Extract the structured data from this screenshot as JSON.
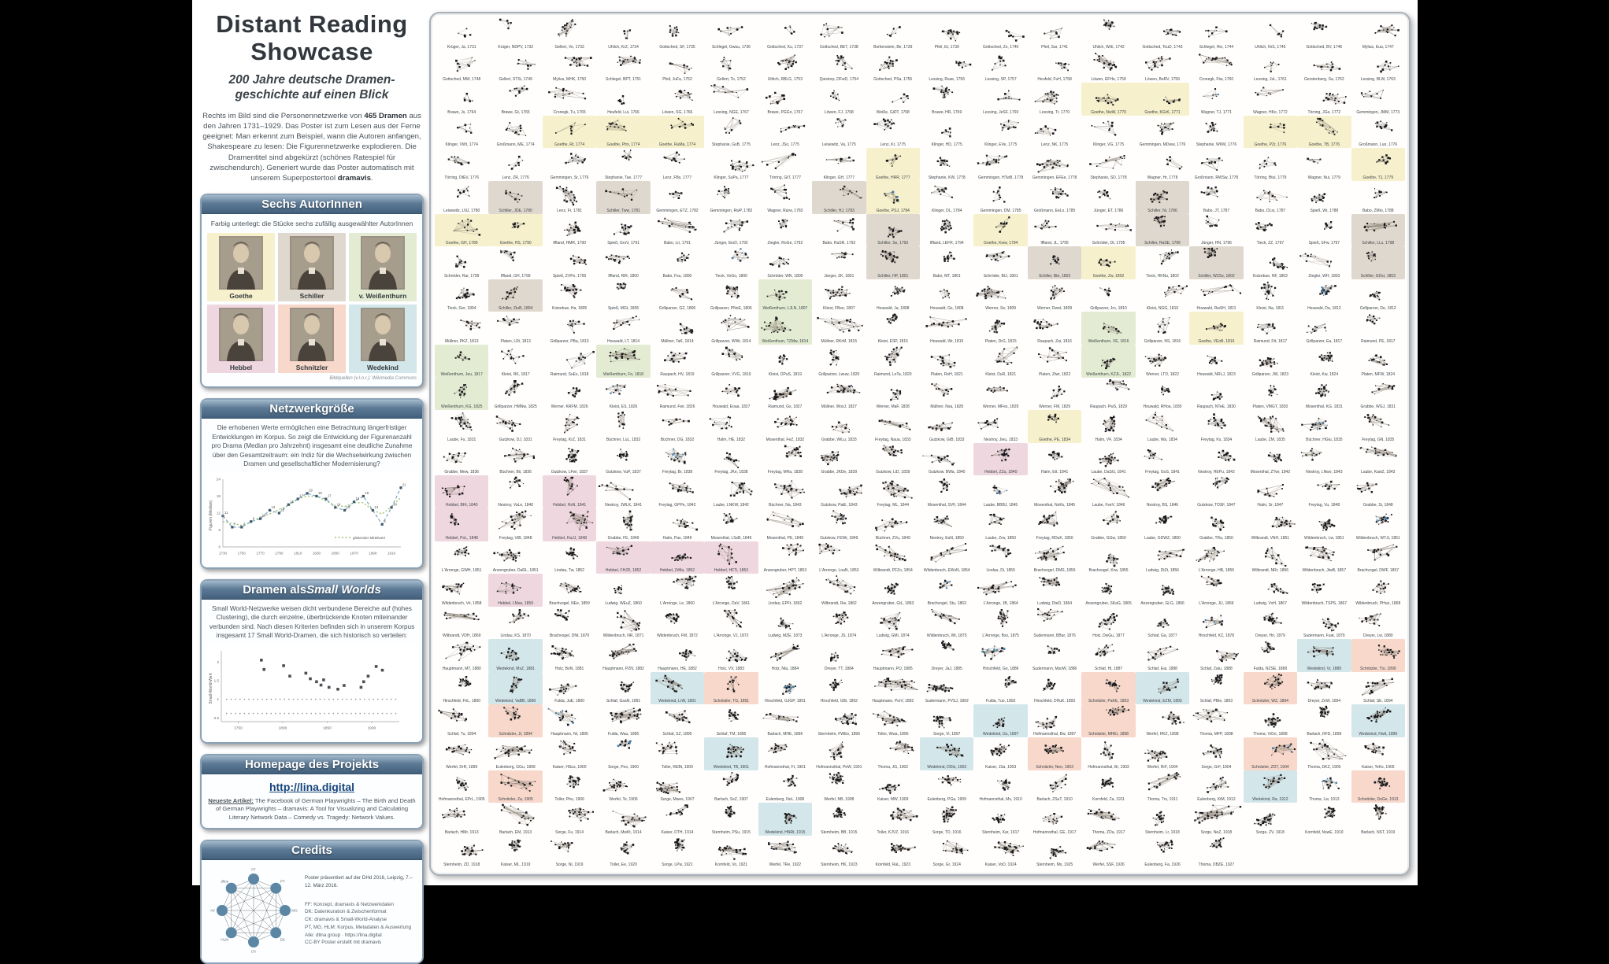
{
  "title": "Distant Reading Showcase",
  "subtitle": "200 Jahre deutsche Dramen-geschichte auf einen Blick",
  "intro": {
    "p1": "Rechts im Bild sind die Personennetzwerke von ",
    "b1": "465 Dramen",
    "p2": " aus den Jahren 1731–1929. Das Poster ist zum Lesen aus der Ferne geeignet: Man erkennt zum Beispiel, wann die Autoren anfangen, Shakespeare zu lesen: Die Figurennetzwerke explodieren. Die Dramentitel sind abgekürzt (schönes Ratespiel für zwischendurch). Generiert wurde das Poster automatisch mit unserem Superpostertool ",
    "b2": "dramavis",
    "p3": "."
  },
  "authors_box": {
    "header": "Sechs AutorInnen",
    "note": "Farbig unterlegt: die Stücke sechs zufällig ausgewählter AutorInnen",
    "caption": "Bildquellen (v.l.n.r.): Wikimedia Commons",
    "items": [
      {
        "name": "Goethe",
        "key": "goethe",
        "color": "#f6f1cc"
      },
      {
        "name": "Schiller",
        "key": "schiller",
        "color": "#dfd8ce"
      },
      {
        "name": "v. Weißenthurn",
        "key": "weissenthurn",
        "color": "#e3ecd2"
      },
      {
        "name": "Hebbel",
        "key": "hebbel",
        "color": "#efd7e0"
      },
      {
        "name": "Schnitzler",
        "key": "schnitzler",
        "color": "#f7d8cb"
      },
      {
        "name": "Wedekind",
        "key": "wedekind",
        "color": "#d3e6ea"
      }
    ]
  },
  "network_size_box": {
    "header": "Netzwerkgröße",
    "text": "Die erhobenen Werte ermöglichen eine Betrachtung längerfristiger Entwicklungen im Korpus. So zeigt die Entwicklung der Figurenanzahl pro Drama (Median pro Jahrzehnt) insgesamt eine deutliche Zunahme über den Gesamtzeitraum: ein Indiz für die Wechselwirkung zwischen Dramen und gesellschaftlicher Modernisierung?",
    "chart_data": {
      "type": "line",
      "x": [
        1730,
        1740,
        1750,
        1760,
        1770,
        1780,
        1790,
        1800,
        1810,
        1820,
        1830,
        1840,
        1850,
        1860,
        1870,
        1880,
        1890,
        1900,
        1910,
        1920
      ],
      "series": [
        {
          "name": "Figuren pro Drama (Median)",
          "values": [
            11,
            7,
            7,
            9,
            10,
            13,
            12,
            15,
            17,
            19,
            18,
            17,
            14,
            13,
            16,
            18,
            13,
            8,
            14,
            21
          ],
          "color": "#7ba7c2",
          "style": "dashed-points"
        },
        {
          "name": "gleitender Mittelwert",
          "color": "#a4c172",
          "style": "dotted-trend"
        }
      ],
      "ylabel": "Figuren (Median)",
      "ylim": [
        0,
        24
      ],
      "legend": "gleitender Mittelwert"
    }
  },
  "small_worlds_box": {
    "header_prefix": "Dramen als ",
    "header_italic": "Small Worlds",
    "text": "Small World-Netzwerke weisen dicht verbundene Bereiche auf (hohes Clustering), die durch einzelne, überbrückende Knoten miteinander verbunden sind. Nach diesen Kriterien befinden sich in unserem Korpus insgesamt 17 Small World-Dramen, die sich historisch so verteilen:",
    "chart_data": {
      "type": "scatter",
      "ylabel": "Small-World-Wert",
      "xticks": [
        1750,
        1800,
        1850,
        1900
      ],
      "sw_points": [
        [
          1776,
          2.05
        ],
        [
          1779,
          1.8
        ],
        [
          1801,
          1.9
        ],
        [
          1808,
          1.62
        ],
        [
          1826,
          1.7
        ],
        [
          1831,
          1.55
        ],
        [
          1838,
          1.47
        ],
        [
          1843,
          1.38
        ],
        [
          1846,
          1.52
        ],
        [
          1852,
          1.32
        ],
        [
          1862,
          1.27
        ],
        [
          1869,
          1.37
        ],
        [
          1888,
          1.32
        ],
        [
          1891,
          1.47
        ],
        [
          1896,
          1.62
        ],
        [
          1905,
          1.88
        ],
        [
          1912,
          1.78
        ]
      ],
      "baseline": {
        "start": 1737,
        "end": 1927,
        "step": 5,
        "levels": [
          1.0,
          0.62
        ]
      }
    }
  },
  "homepage_box": {
    "header": "Homepage des Projekts",
    "url": "http://lina.digital",
    "articles_lead": "Neueste Artikel:",
    "articles": " The Facebook of German Playwrights – The Birth and Death of German Playwrights – dramavis: A Tool for Visualizing and Calculating Literary Network Data – Comedy vs. Tragedy: Network Values."
  },
  "credits_box": {
    "header": "Credits",
    "presented": "Poster präsentiert auf der DHd 2016, Leipzig, 7.–12. März 2016.",
    "lines": [
      "FF: Konzept, dramavis & Netzwerkdaten",
      "DK: Datenkuration & Zwischenformat",
      "CK: dramavis & Small-World-Analyse",
      "PT, MG, HLM: Korpus, Metadaten & Auswertung",
      "Alle: dlina group · https://lina.digital",
      "CC-BY Poster erstellt mit dramavis"
    ],
    "node_labels": [
      "FF",
      "PT",
      "MG",
      "DK",
      "CK",
      "HLM",
      "AV",
      "dlina"
    ],
    "node_color": "#5b87a5"
  },
  "grid": {
    "cols": 18,
    "total_cells": 465,
    "year_start": 1731,
    "year_end": 1929,
    "row_years": [
      [
        1731,
        1747
      ],
      [
        1748,
        1763
      ],
      [
        1764,
        1773
      ],
      [
        1774,
        1776
      ],
      [
        1776,
        1779
      ],
      [
        1780,
        1788
      ],
      [
        1789,
        1798
      ],
      [
        1799,
        1803
      ],
      [
        1804,
        1812
      ],
      [
        1813,
        1817
      ],
      [
        1817,
        1824
      ],
      [
        1825,
        1831
      ],
      [
        1831,
        1835
      ],
      [
        1836,
        1843
      ],
      [
        1840,
        1848
      ],
      [
        1848,
        1851
      ],
      [
        1851,
        1857
      ],
      [
        1858,
        1868
      ],
      [
        1869,
        1880
      ],
      [
        1880,
        1890
      ],
      [
        1890,
        1894
      ],
      [
        1894,
        1899
      ],
      [
        1899,
        1905
      ],
      [
        1905,
        1913
      ],
      [
        1913,
        1919
      ],
      [
        1918,
        1929
      ]
    ],
    "sample_labels": [
      "Gottsched, DsC, 1731",
      "Borkenstein, FBN, 1736",
      "Gottsched, DPT, 1736",
      "Mylius, DU, 1746",
      "Lessing, DjG, 1748",
      "Lessing, DaJ, 1749",
      "Goethe, GvB, 1773",
      "Goethe, S, 1775",
      "Schiller, KuL, 1784",
      "Goethe, IaT, 1787",
      "Weißenthurn, WdN, 1813",
      "Hebbel, J, 1841",
      "Schnitzler, L, 1896",
      "Wedekind, FrEw, 1891"
    ],
    "author_pools": [
      {
        "max": 1755,
        "names": [
          "Gottsched",
          "Borkenstein",
          "Schlegel",
          "Gellert",
          "Quistorp",
          "Krüger",
          "Mylius",
          "Uhlich",
          "Pfeil"
        ]
      },
      {
        "max": 1770,
        "names": [
          "Lessing",
          "Weiße",
          "Cronegk",
          "Brawe",
          "Gerstenberg",
          "Löwen",
          "Heufeld",
          "Lessing"
        ]
      },
      {
        "max": 1785,
        "names": [
          "Lenz",
          "Klinger",
          "Leisewitz",
          "Wagner",
          "Törring",
          "Gemmingen",
          "Großmann",
          "Stephanie"
        ]
      },
      {
        "max": 1805,
        "names": [
          "Iffland",
          "Kotzebue",
          "Babo",
          "Ziegler",
          "Spieß",
          "Jünger",
          "Schröder",
          "Tieck"
        ]
      },
      {
        "max": 1830,
        "names": [
          "Kleist",
          "Werner",
          "Müllner",
          "Houwald",
          "Grillparzer",
          "Raupach",
          "Raimund",
          "Platen"
        ]
      },
      {
        "max": 1850,
        "names": [
          "Nestroy",
          "Grabbe",
          "Büchner",
          "Gutzkow",
          "Laube",
          "Halm",
          "Freytag",
          "Mosenthal"
        ]
      },
      {
        "max": 1875,
        "names": [
          "Ludwig",
          "Brachvogel",
          "Anzengruber",
          "Wilbrandt",
          "L'Arronge",
          "Lindau",
          "Wildenbruch"
        ]
      },
      {
        "max": 1895,
        "names": [
          "Sudermann",
          "Hauptmann",
          "Holz",
          "Schlaf",
          "Fulda",
          "Dreyer",
          "Hirschfeld"
        ]
      },
      {
        "max": 1929,
        "names": [
          "Hofmannsthal",
          "Sternheim",
          "Kaiser",
          "Toller",
          "Barlach",
          "Werfel",
          "Sorge",
          "Kornfeld",
          "Eulenberg",
          "Thoma"
        ]
      }
    ],
    "highlights": {
      "goethe": [
        [
          3,
          13
        ],
        [
          3,
          14
        ],
        [
          4,
          3
        ],
        [
          4,
          4
        ],
        [
          4,
          5
        ],
        [
          4,
          16
        ],
        [
          4,
          17
        ],
        [
          5,
          9
        ],
        [
          5,
          18
        ],
        [
          6,
          9
        ],
        [
          7,
          1
        ],
        [
          7,
          2
        ],
        [
          7,
          11
        ],
        [
          8,
          13
        ],
        [
          10,
          15
        ],
        [
          13,
          12
        ]
      ],
      "schiller": [
        [
          6,
          2
        ],
        [
          6,
          4
        ],
        [
          6,
          8
        ],
        [
          6,
          14
        ],
        [
          7,
          9
        ],
        [
          7,
          14
        ],
        [
          7,
          18
        ],
        [
          8,
          9
        ],
        [
          8,
          12
        ],
        [
          8,
          15
        ],
        [
          8,
          18
        ],
        [
          9,
          2
        ]
      ],
      "weissenthurn": [
        [
          9,
          7
        ],
        [
          10,
          7
        ],
        [
          10,
          13
        ],
        [
          11,
          1
        ],
        [
          11,
          4
        ],
        [
          11,
          13
        ],
        [
          12,
          1
        ]
      ],
      "hebbel": [
        [
          14,
          11
        ],
        [
          15,
          1
        ],
        [
          15,
          3
        ],
        [
          16,
          1
        ],
        [
          16,
          3
        ],
        [
          17,
          4
        ],
        [
          17,
          5
        ],
        [
          17,
          6
        ],
        [
          18,
          2
        ]
      ],
      "schnitzler": [
        [
          20,
          18
        ],
        [
          21,
          6
        ],
        [
          21,
          13
        ],
        [
          21,
          16
        ],
        [
          22,
          2
        ],
        [
          22,
          13
        ],
        [
          23,
          12
        ],
        [
          23,
          16
        ],
        [
          24,
          2
        ],
        [
          24,
          18
        ]
      ],
      "wedekind": [
        [
          20,
          2
        ],
        [
          20,
          17
        ],
        [
          21,
          2
        ],
        [
          21,
          5
        ],
        [
          21,
          14
        ],
        [
          22,
          11
        ],
        [
          22,
          18
        ],
        [
          23,
          6
        ],
        [
          23,
          10
        ],
        [
          24,
          16
        ],
        [
          25,
          7
        ]
      ]
    },
    "highlight_names": {
      "goethe": "Goethe",
      "schiller": "Schiller",
      "weissenthurn": "Weißenthurn",
      "hebbel": "Hebbel",
      "schnitzler": "Schnitzler",
      "wedekind": "Wedekind"
    },
    "small_world_cells": [
      50,
      98,
      131,
      160,
      201,
      232,
      238,
      262,
      287,
      315,
      338,
      352,
      366,
      380,
      399,
      411,
      430
    ],
    "edge_color": "rgba(140,130,118,0.55)",
    "node_color": "#17171c",
    "sw_node_color": "#3e7ca8"
  }
}
